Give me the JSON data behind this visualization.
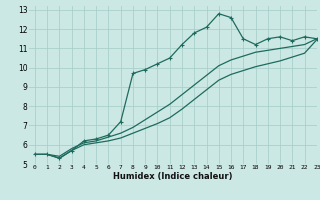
{
  "xlabel": "Humidex (Indice chaleur)",
  "xlim": [
    -0.5,
    23
  ],
  "ylim": [
    5,
    13.2
  ],
  "xticks": [
    0,
    1,
    2,
    3,
    4,
    5,
    6,
    7,
    8,
    9,
    10,
    11,
    12,
    13,
    14,
    15,
    16,
    17,
    18,
    19,
    20,
    21,
    22,
    23
  ],
  "yticks": [
    5,
    6,
    7,
    8,
    9,
    10,
    11,
    12,
    13
  ],
  "bg_color": "#cce8e4",
  "grid_color": "#aacfca",
  "line_color": "#1e6b5e",
  "series1_x": [
    0,
    1,
    2,
    3,
    4,
    5,
    6,
    7,
    8,
    9,
    10,
    11,
    12,
    13,
    14,
    15,
    16,
    17,
    18,
    19,
    20,
    21,
    22,
    23
  ],
  "series1_y": [
    5.5,
    5.5,
    5.3,
    5.7,
    6.2,
    6.3,
    6.5,
    7.2,
    9.7,
    9.9,
    10.2,
    10.5,
    11.2,
    11.8,
    12.1,
    12.8,
    12.6,
    11.5,
    11.2,
    11.5,
    11.6,
    11.4,
    11.6,
    11.5
  ],
  "series2_x": [
    0,
    1,
    2,
    3,
    4,
    5,
    6,
    7,
    8,
    9,
    10,
    11,
    12,
    13,
    14,
    15,
    16,
    17,
    18,
    19,
    20,
    21,
    22,
    23
  ],
  "series2_y": [
    5.5,
    5.5,
    5.4,
    5.8,
    6.1,
    6.2,
    6.4,
    6.6,
    6.9,
    7.3,
    7.7,
    8.1,
    8.6,
    9.1,
    9.6,
    10.1,
    10.4,
    10.6,
    10.8,
    10.9,
    11.0,
    11.1,
    11.2,
    11.5
  ],
  "series3_x": [
    0,
    1,
    2,
    3,
    4,
    5,
    6,
    7,
    8,
    9,
    10,
    11,
    12,
    13,
    14,
    15,
    16,
    17,
    18,
    19,
    20,
    21,
    22,
    23
  ],
  "series3_y": [
    5.5,
    5.5,
    5.3,
    5.7,
    6.0,
    6.1,
    6.2,
    6.35,
    6.6,
    6.85,
    7.1,
    7.4,
    7.85,
    8.35,
    8.85,
    9.35,
    9.65,
    9.85,
    10.05,
    10.2,
    10.35,
    10.55,
    10.75,
    11.45
  ]
}
